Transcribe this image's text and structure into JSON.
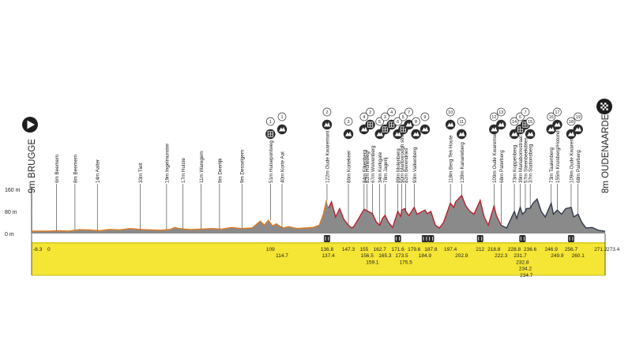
{
  "chart_data": {
    "type": "area",
    "title": "",
    "start": {
      "label": "9m BRUGGE",
      "icon": "play-start-icon"
    },
    "finish": {
      "label": "8m OUDENAARDE",
      "icon": "checkered-flag-icon"
    },
    "y_axis": {
      "unit": "m",
      "ylim": [
        0,
        160
      ],
      "ticks": [
        {
          "value": 0,
          "label": "0 m"
        },
        {
          "value": 80,
          "label": "80 m"
        },
        {
          "value": 160,
          "label": "160 m"
        }
      ]
    },
    "x_range": [
      0,
      273.4
    ],
    "km_start_labels": [
      "-8.3",
      "0"
    ],
    "km_end_label": "273.4",
    "profile": [
      [
        -8.3,
        9
      ],
      [
        0,
        9
      ],
      [
        5,
        10
      ],
      [
        10,
        9
      ],
      [
        15,
        14
      ],
      [
        20,
        13
      ],
      [
        25,
        10
      ],
      [
        30,
        15
      ],
      [
        35,
        13
      ],
      [
        40,
        18
      ],
      [
        45,
        15
      ],
      [
        50,
        13
      ],
      [
        55,
        12
      ],
      [
        60,
        15
      ],
      [
        62,
        22
      ],
      [
        64,
        18
      ],
      [
        70,
        14
      ],
      [
        75,
        16
      ],
      [
        80,
        18
      ],
      [
        85,
        16
      ],
      [
        90,
        22
      ],
      [
        95,
        18
      ],
      [
        100,
        20
      ],
      [
        104,
        45
      ],
      [
        106,
        30
      ],
      [
        108,
        48
      ],
      [
        110,
        28
      ],
      [
        112,
        35
      ],
      [
        115,
        20
      ],
      [
        118,
        25
      ],
      [
        122,
        18
      ],
      [
        126,
        20
      ],
      [
        130,
        22
      ],
      [
        133,
        30
      ],
      [
        135,
        70
      ],
      [
        136.5,
        120
      ],
      [
        137.5,
        92
      ],
      [
        139,
        115
      ],
      [
        141,
        60
      ],
      [
        143,
        90
      ],
      [
        145,
        52
      ],
      [
        147.3,
        30
      ],
      [
        149,
        20
      ],
      [
        150,
        26
      ],
      [
        152,
        50
      ],
      [
        155,
        88
      ],
      [
        156.5,
        82
      ],
      [
        159.1,
        72
      ],
      [
        161,
        42
      ],
      [
        162.7,
        30
      ],
      [
        164,
        55
      ],
      [
        165.3,
        66
      ],
      [
        167,
        40
      ],
      [
        169,
        22
      ],
      [
        171.6,
        80
      ],
      [
        173,
        62
      ],
      [
        173.5,
        85
      ],
      [
        175,
        90
      ],
      [
        175.5,
        80
      ],
      [
        177,
        65
      ],
      [
        179.6,
        95
      ],
      [
        181,
        70
      ],
      [
        184.9,
        85
      ],
      [
        186,
        72
      ],
      [
        187.8,
        80
      ],
      [
        190,
        30
      ],
      [
        192,
        20
      ],
      [
        194,
        40
      ],
      [
        197.4,
        110
      ],
      [
        199,
        95
      ],
      [
        200,
        115
      ],
      [
        202.9,
        138
      ],
      [
        205,
        100
      ],
      [
        207,
        80
      ],
      [
        209,
        70
      ],
      [
        212,
        120
      ],
      [
        214,
        60
      ],
      [
        216,
        30
      ],
      [
        218.8,
        100
      ],
      [
        220,
        65
      ],
      [
        222.3,
        30
      ],
      [
        225,
        20
      ],
      [
        228.8,
        80
      ],
      [
        230,
        55
      ],
      [
        231.7,
        95
      ],
      [
        232.8,
        70
      ],
      [
        234.2,
        80
      ],
      [
        234.7,
        90
      ],
      [
        236.6,
        92
      ],
      [
        238,
        110
      ],
      [
        240,
        125
      ],
      [
        242,
        80
      ],
      [
        244,
        60
      ],
      [
        246.9,
        110
      ],
      [
        248,
        70
      ],
      [
        249.9,
        85
      ],
      [
        252,
        70
      ],
      [
        254,
        90
      ],
      [
        256.7,
        95
      ],
      [
        258,
        60
      ],
      [
        260.1,
        70
      ],
      [
        262,
        40
      ],
      [
        264,
        20
      ],
      [
        267,
        22
      ],
      [
        270,
        12
      ],
      [
        273.4,
        8
      ]
    ],
    "series": [
      {
        "name": "",
        "range": [
          -8.3,
          136.8
        ],
        "fill": "#8a8a8a",
        "line": "#e07b22"
      },
      {
        "name": "",
        "range": [
          136.8,
          222.3
        ],
        "fill": "#8a8a8a",
        "line": "#b8202e"
      },
      {
        "name": "",
        "range": [
          222.3,
          273.4
        ],
        "fill": "#8a8a8a",
        "line": "#2f3a4a"
      }
    ],
    "early_climbs": [
      {
        "km": 4,
        "label": "6m Beernem"
      },
      {
        "km": 13,
        "label": "8m Beernem"
      },
      {
        "km": 24,
        "label": "14m Aalter"
      },
      {
        "km": 45,
        "label": "33m Tielt"
      },
      {
        "km": 58,
        "label": "19m Ingelmunster"
      },
      {
        "km": 66,
        "label": "17m Hulste"
      },
      {
        "km": 75,
        "label": "11m Waregem"
      },
      {
        "km": 84,
        "label": "9m Deerlijk"
      },
      {
        "km": 95,
        "label": "9m Desselgem"
      },
      {
        "km": 109,
        "label": "51m Huisepontweg"
      },
      {
        "km": 114.7,
        "label": "40m Korte Aat"
      },
      {
        "km": 136.8,
        "label": "122m Oude Kwaremont"
      },
      {
        "km": 147.3,
        "label": "86m Kortekeer"
      },
      {
        "km": 155,
        "label": "84m Eikenberg"
      },
      {
        "km": 156.5,
        "label": "82m Holleweg"
      },
      {
        "km": 159.1,
        "label": "67m Wolvenberg"
      },
      {
        "km": 162.7,
        "label": "34m Kerkgate"
      },
      {
        "km": 165.3,
        "label": "78m Jagerij"
      },
      {
        "km": 171.6,
        "label": "89m Molenberg"
      },
      {
        "km": 173.5,
        "label": "90m Marlborough straat"
      },
      {
        "km": 175.5,
        "label": "82m Berendries"
      },
      {
        "km": 179.6,
        "label": "93m Valkenberg"
      },
      {
        "km": 197.4,
        "label": "118m Berg Ten Houte"
      },
      {
        "km": 202.9,
        "label": "139m Kanarieberg"
      },
      {
        "km": 218.8,
        "label": "109m Oude Kwaremont"
      },
      {
        "km": 222.3,
        "label": "68m Paterberg"
      },
      {
        "km": 228.8,
        "label": "73m Koppenberg"
      },
      {
        "km": 231.7,
        "label": "39m Mariaborrestraat"
      },
      {
        "km": 234.2,
        "label": "57m Steenbeekdries"
      },
      {
        "km": 236.6,
        "label": "37m Stationsberg"
      },
      {
        "km": 246.9,
        "label": "73m Taaienberg"
      },
      {
        "km": 249.9,
        "label": "155m Kruisberg/Hotond"
      },
      {
        "km": 256.7,
        "label": "109m Oude Kwaremont"
      },
      {
        "km": 260.1,
        "label": "68m Paterberg"
      }
    ],
    "markers": [
      {
        "km": 109,
        "num": "1",
        "kind": "cobble"
      },
      {
        "km": 114.7,
        "num": "1",
        "kind": "climb"
      },
      {
        "km": 136.8,
        "num": "2",
        "kind": "climb"
      },
      {
        "km": 147.3,
        "num": "3",
        "kind": "climb"
      },
      {
        "km": 155,
        "num": "4",
        "kind": "climb"
      },
      {
        "km": 158,
        "num": "2",
        "kind": "cobble"
      },
      {
        "km": 162.7,
        "num": "5",
        "kind": "climb"
      },
      {
        "km": 165.3,
        "num": "3",
        "kind": "cobble"
      },
      {
        "km": 168.5,
        "num": "4",
        "kind": "cobble"
      },
      {
        "km": 171.6,
        "num": "6",
        "kind": "climb"
      },
      {
        "km": 174.2,
        "num": "5",
        "kind": "cobble"
      },
      {
        "km": 177,
        "num": "7",
        "kind": "climb"
      },
      {
        "km": 180.5,
        "num": "8",
        "kind": "climb"
      },
      {
        "km": 184.9,
        "num": "9",
        "kind": "climb"
      },
      {
        "km": 197.4,
        "num": "10",
        "kind": "climb"
      },
      {
        "km": 202.9,
        "num": "11",
        "kind": "climb"
      },
      {
        "km": 218.8,
        "num": "12",
        "kind": "climb"
      },
      {
        "km": 222.3,
        "num": "13",
        "kind": "climb"
      },
      {
        "km": 228.8,
        "num": "14",
        "kind": "climb"
      },
      {
        "km": 231.7,
        "num": "6",
        "kind": "cobble"
      },
      {
        "km": 234.2,
        "num": "7",
        "kind": "cobble"
      },
      {
        "km": 236.6,
        "num": "15",
        "kind": "climb"
      },
      {
        "km": 246.9,
        "num": "16",
        "kind": "climb"
      },
      {
        "km": 249.9,
        "num": "17",
        "kind": "climb"
      },
      {
        "km": 256.7,
        "num": "18",
        "kind": "climb"
      },
      {
        "km": 260.1,
        "num": "19",
        "kind": "climb"
      }
    ],
    "feed_icons": [
      {
        "km": 136.8,
        "kind": "cobble"
      },
      {
        "km": 171.6,
        "kind": "cobble"
      },
      {
        "km": 184.9,
        "kind": "cobble"
      },
      {
        "km": 187.8,
        "kind": "feed"
      },
      {
        "km": 212,
        "kind": "cobble"
      },
      {
        "km": 232.8,
        "kind": "cobble"
      },
      {
        "km": 256.7,
        "kind": "cobble"
      }
    ],
    "km_marks": [
      {
        "km": 109,
        "label": "109",
        "row": 0
      },
      {
        "km": 114.7,
        "label": "114.7",
        "row": 1
      },
      {
        "km": 136.8,
        "label": "136.8",
        "row": 0
      },
      {
        "km": 137.4,
        "label": "137.4",
        "row": 1
      },
      {
        "km": 147.3,
        "label": "147.3",
        "row": 0
      },
      {
        "km": 155,
        "label": "155",
        "row": 0
      },
      {
        "km": 156.5,
        "label": "156.5",
        "row": 1
      },
      {
        "km": 159.1,
        "label": "159.1",
        "row": 2
      },
      {
        "km": 162.7,
        "label": "162.7",
        "row": 0
      },
      {
        "km": 165.3,
        "label": "165.3",
        "row": 1
      },
      {
        "km": 171.6,
        "label": "171.6",
        "row": 0
      },
      {
        "km": 173.5,
        "label": "173.5",
        "row": 1
      },
      {
        "km": 175.5,
        "label": "175.5",
        "row": 2
      },
      {
        "km": 179.6,
        "label": "179.6",
        "row": 0
      },
      {
        "km": 184.9,
        "label": "184.9",
        "row": 1
      },
      {
        "km": 187.8,
        "label": "187.8",
        "row": 0
      },
      {
        "km": 197.4,
        "label": "197.4",
        "row": 0
      },
      {
        "km": 202.9,
        "label": "202.9",
        "row": 1
      },
      {
        "km": 212,
        "label": "212",
        "row": 0
      },
      {
        "km": 218.8,
        "label": "218.8",
        "row": 0
      },
      {
        "km": 222.3,
        "label": "222.3",
        "row": 1
      },
      {
        "km": 228.8,
        "label": "228.8",
        "row": 0
      },
      {
        "km": 231.7,
        "label": "231.7",
        "row": 1
      },
      {
        "km": 232.8,
        "label": "232.8",
        "row": 2
      },
      {
        "km": 234.2,
        "label": "234.2",
        "row": 3
      },
      {
        "km": 234.7,
        "label": "234.7",
        "row": 4
      },
      {
        "km": 236.6,
        "label": "236.6",
        "row": 0
      },
      {
        "km": 246.9,
        "label": "246.9",
        "row": 0
      },
      {
        "km": 249.9,
        "label": "249.9",
        "row": 1
      },
      {
        "km": 256.7,
        "label": "256.7",
        "row": 0
      },
      {
        "km": 260.1,
        "label": "260.1",
        "row": 1
      },
      {
        "km": 271.2,
        "label": "271.2",
        "row": 0
      }
    ]
  },
  "colors": {
    "band": "#f5e534",
    "band_edge": "#c9bc1a",
    "fill": "#8a8a8a",
    "text": "#222222",
    "icon": "#2b2b2b"
  }
}
